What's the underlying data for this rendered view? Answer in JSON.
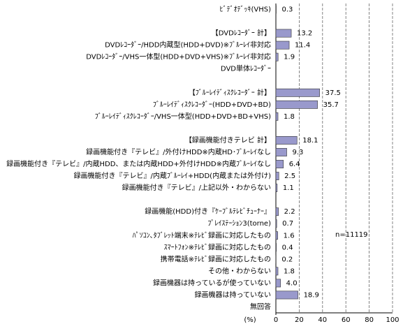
{
  "chart_data": {
    "type": "barh",
    "categories": [
      "ﾋﾞﾃﾞｵﾃﾞｯｷ(VHS)",
      null,
      "【DVDﾚｺｰﾀﾞｰ 計】",
      "DVDﾚｺｰﾀﾞｰ/HDD内蔵型(HDD+DVD)※ﾌﾞﾙｰﾚｲ非対応",
      "DVDﾚｺｰﾀﾞｰ/VHS一体型(HDD+DVD+VHS)※ﾌﾞﾙｰﾚｲ非対応",
      "DVD単体ﾚｺｰﾀﾞｰ",
      null,
      "【ﾌﾞﾙｰﾚｲﾃﾞｨｽｸﾚｺｰﾀﾞｰ 計】",
      "ﾌﾞﾙｰﾚｲﾃﾞｨｽｸﾚｺｰﾀﾞｰ(HDD+DVD+BD)",
      "ﾌﾞﾙｰﾚｲﾃﾞｨｽｸﾚｺｰﾀﾞｰ/VHS一体型(HDD+DVD+BD+VHS)",
      null,
      "【録画機能付きテレビ 計】",
      "録画機能付き『テレビ』/外付けHDD※内蔵HD･ﾌﾞﾙｰﾚｲなし",
      "録画機能付き『テレビ』/内蔵HDD、または内蔵HDD+外付けHDD※内蔵ﾌﾞﾙｰﾚｲなし",
      "録画機能付き『テレビ』/内蔵ﾌﾞﾙｰﾚｲ+HDD(内蔵または外付け)",
      "録画機能付き『テレビ』/上記以外・わからない",
      null,
      "録画機能(HDD)付き『ｹｰﾌﾞﾙﾃﾚﾋﾞﾁｭｰﾅｰ』",
      "ﾌﾟﾚｲｽﾃｰｼｮﾝ3(torne)",
      "ﾊﾟｿｺﾝ､ﾀﾌﾞﾚｯﾄ端末※ﾃﾚﾋﾞ録画に対応したもの",
      "ｽﾏｰﾄﾌｫﾝ※ﾃﾚﾋﾞ録画に対応したもの",
      "携帯電話※ﾃﾚﾋﾞ録画に対応したもの",
      "その他・わからない",
      "録画機器は持っているが使っていない",
      "録画機器は持っていない",
      "無回答"
    ],
    "values": [
      0.3,
      null,
      13.2,
      11.4,
      1.9,
      null,
      null,
      37.5,
      35.7,
      1.8,
      null,
      18.1,
      9.3,
      6.4,
      2.5,
      1.1,
      null,
      2.2,
      0.7,
      1.6,
      0.4,
      0.2,
      1.8,
      4,
      18.9,
      null
    ],
    "value_labels": [
      "0.3",
      null,
      "13.2",
      "11.4",
      "1.9",
      null,
      null,
      "37.5",
      "35.7",
      "1.8",
      null,
      "18.1",
      "9.3",
      "6.4",
      "2.5",
      "1.1",
      null,
      "2.2",
      "0.7",
      "1.6",
      "0.4",
      "0.2",
      "1.8",
      "4.0",
      "18.9",
      null
    ],
    "color": "#9999cc",
    "xlim": [
      0,
      100
    ],
    "xticks": [
      0,
      20,
      40,
      60,
      80,
      100
    ],
    "xlabel": "(%)",
    "annotation": "n=11119",
    "grid": true
  }
}
